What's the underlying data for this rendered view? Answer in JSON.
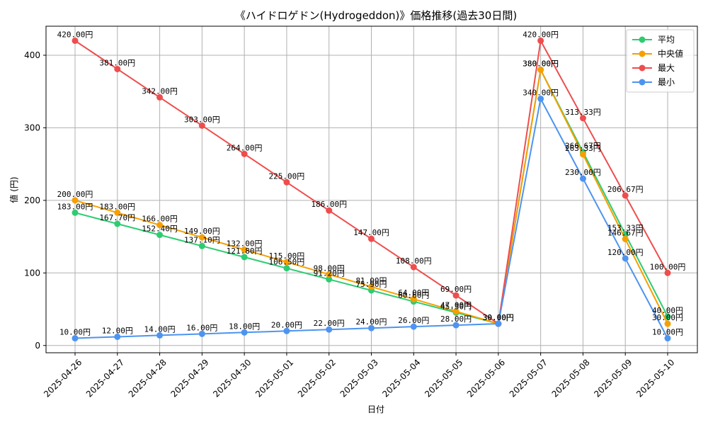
{
  "chart_data": {
    "type": "line",
    "title": "《ハイドロゲドン(Hydrogeddon)》価格推移(過去30日間)",
    "xlabel": "日付",
    "ylabel": "値 (円)",
    "categories": [
      "2025-04-26",
      "2025-04-27",
      "2025-04-28",
      "2025-04-29",
      "2025-04-30",
      "2025-05-01",
      "2025-05-02",
      "2025-05-03",
      "2025-05-04",
      "2025-05-05",
      "2025-05-06",
      "2025-05-07",
      "2025-05-08",
      "2025-05-09",
      "2025-05-10"
    ],
    "ylim": [
      -10,
      440
    ],
    "yticks": [
      0,
      100,
      200,
      300,
      400
    ],
    "grid": true,
    "legend_position": "top-right",
    "value_suffix": "円",
    "series": [
      {
        "name": "平均",
        "color": "#2ecc71",
        "values": [
          183.0,
          167.7,
          152.4,
          137.1,
          121.8,
          106.5,
          91.2,
          75.9,
          60.6,
          45.3,
          30.0,
          380.0,
          266.67,
          153.33,
          40.0
        ]
      },
      {
        "name": "中央値",
        "color": "#f5a000",
        "values": [
          200.0,
          183.0,
          166.0,
          149.0,
          132.0,
          115.0,
          98.0,
          81.0,
          64.0,
          47.0,
          30.0,
          380.0,
          263.33,
          146.67,
          30.0
        ]
      },
      {
        "name": "最大",
        "color": "#ef4d4d",
        "values": [
          420.0,
          381.0,
          342.0,
          303.0,
          264.0,
          225.0,
          186.0,
          147.0,
          108.0,
          69.0,
          30.0,
          420.0,
          313.33,
          206.67,
          100.0
        ]
      },
      {
        "name": "最小",
        "color": "#4d94f0",
        "values": [
          10.0,
          12.0,
          14.0,
          16.0,
          18.0,
          20.0,
          22.0,
          24.0,
          26.0,
          28.0,
          30.0,
          340.0,
          230.0,
          120.0,
          10.0
        ]
      }
    ]
  }
}
